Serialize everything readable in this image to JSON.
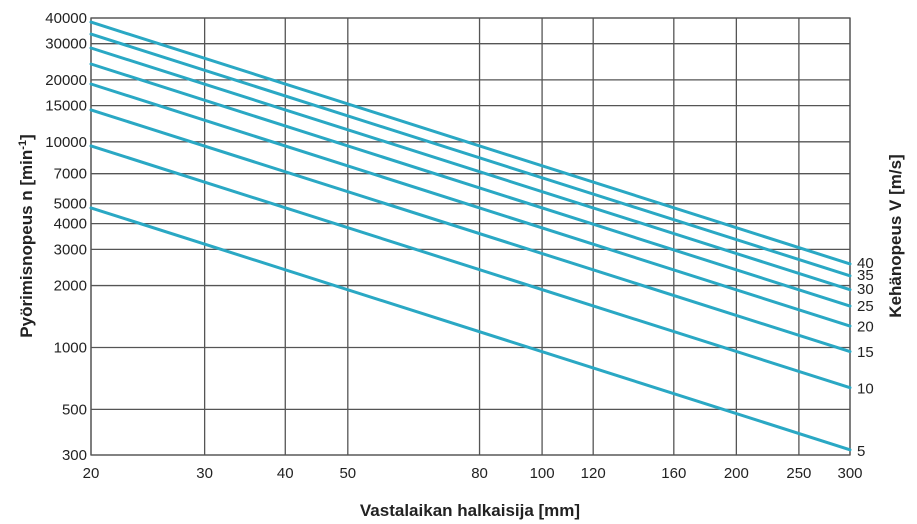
{
  "chart_data": {
    "type": "line",
    "title": "",
    "xlabel": "Vastalaikan halkaisija [mm]",
    "ylabel_main": "Pyörimisnopeus n [min",
    "ylabel_sup": "-1",
    "ylabel_end": "]",
    "y2label": "Kehänopeus V [m/s]",
    "x_scale": "log",
    "y_scale": "log",
    "xlim": [
      20,
      300
    ],
    "ylim": [
      300,
      40000
    ],
    "grid": true,
    "x_ticks": [
      20,
      30,
      40,
      50,
      80,
      100,
      120,
      160,
      200,
      250,
      300
    ],
    "y_ticks": [
      40000,
      30000,
      20000,
      15000,
      10000,
      7000,
      5000,
      4000,
      3000,
      2000,
      1000,
      500,
      300
    ],
    "series": [
      {
        "name": "40",
        "x": [
          20,
          300
        ],
        "y": [
          38200,
          2550
        ]
      },
      {
        "name": "35",
        "x": [
          20,
          300
        ],
        "y": [
          33400,
          2230
        ]
      },
      {
        "name": "30",
        "x": [
          20,
          300
        ],
        "y": [
          28600,
          1910
        ]
      },
      {
        "name": "25",
        "x": [
          20,
          300
        ],
        "y": [
          23900,
          1590
        ]
      },
      {
        "name": "20",
        "x": [
          20,
          300
        ],
        "y": [
          19100,
          1270
        ]
      },
      {
        "name": "15",
        "x": [
          20,
          300
        ],
        "y": [
          14300,
          955
        ]
      },
      {
        "name": "10",
        "x": [
          20,
          300
        ],
        "y": [
          9550,
          637
        ]
      },
      {
        "name": "5",
        "x": [
          20,
          300
        ],
        "y": [
          4770,
          318
        ]
      }
    ]
  }
}
